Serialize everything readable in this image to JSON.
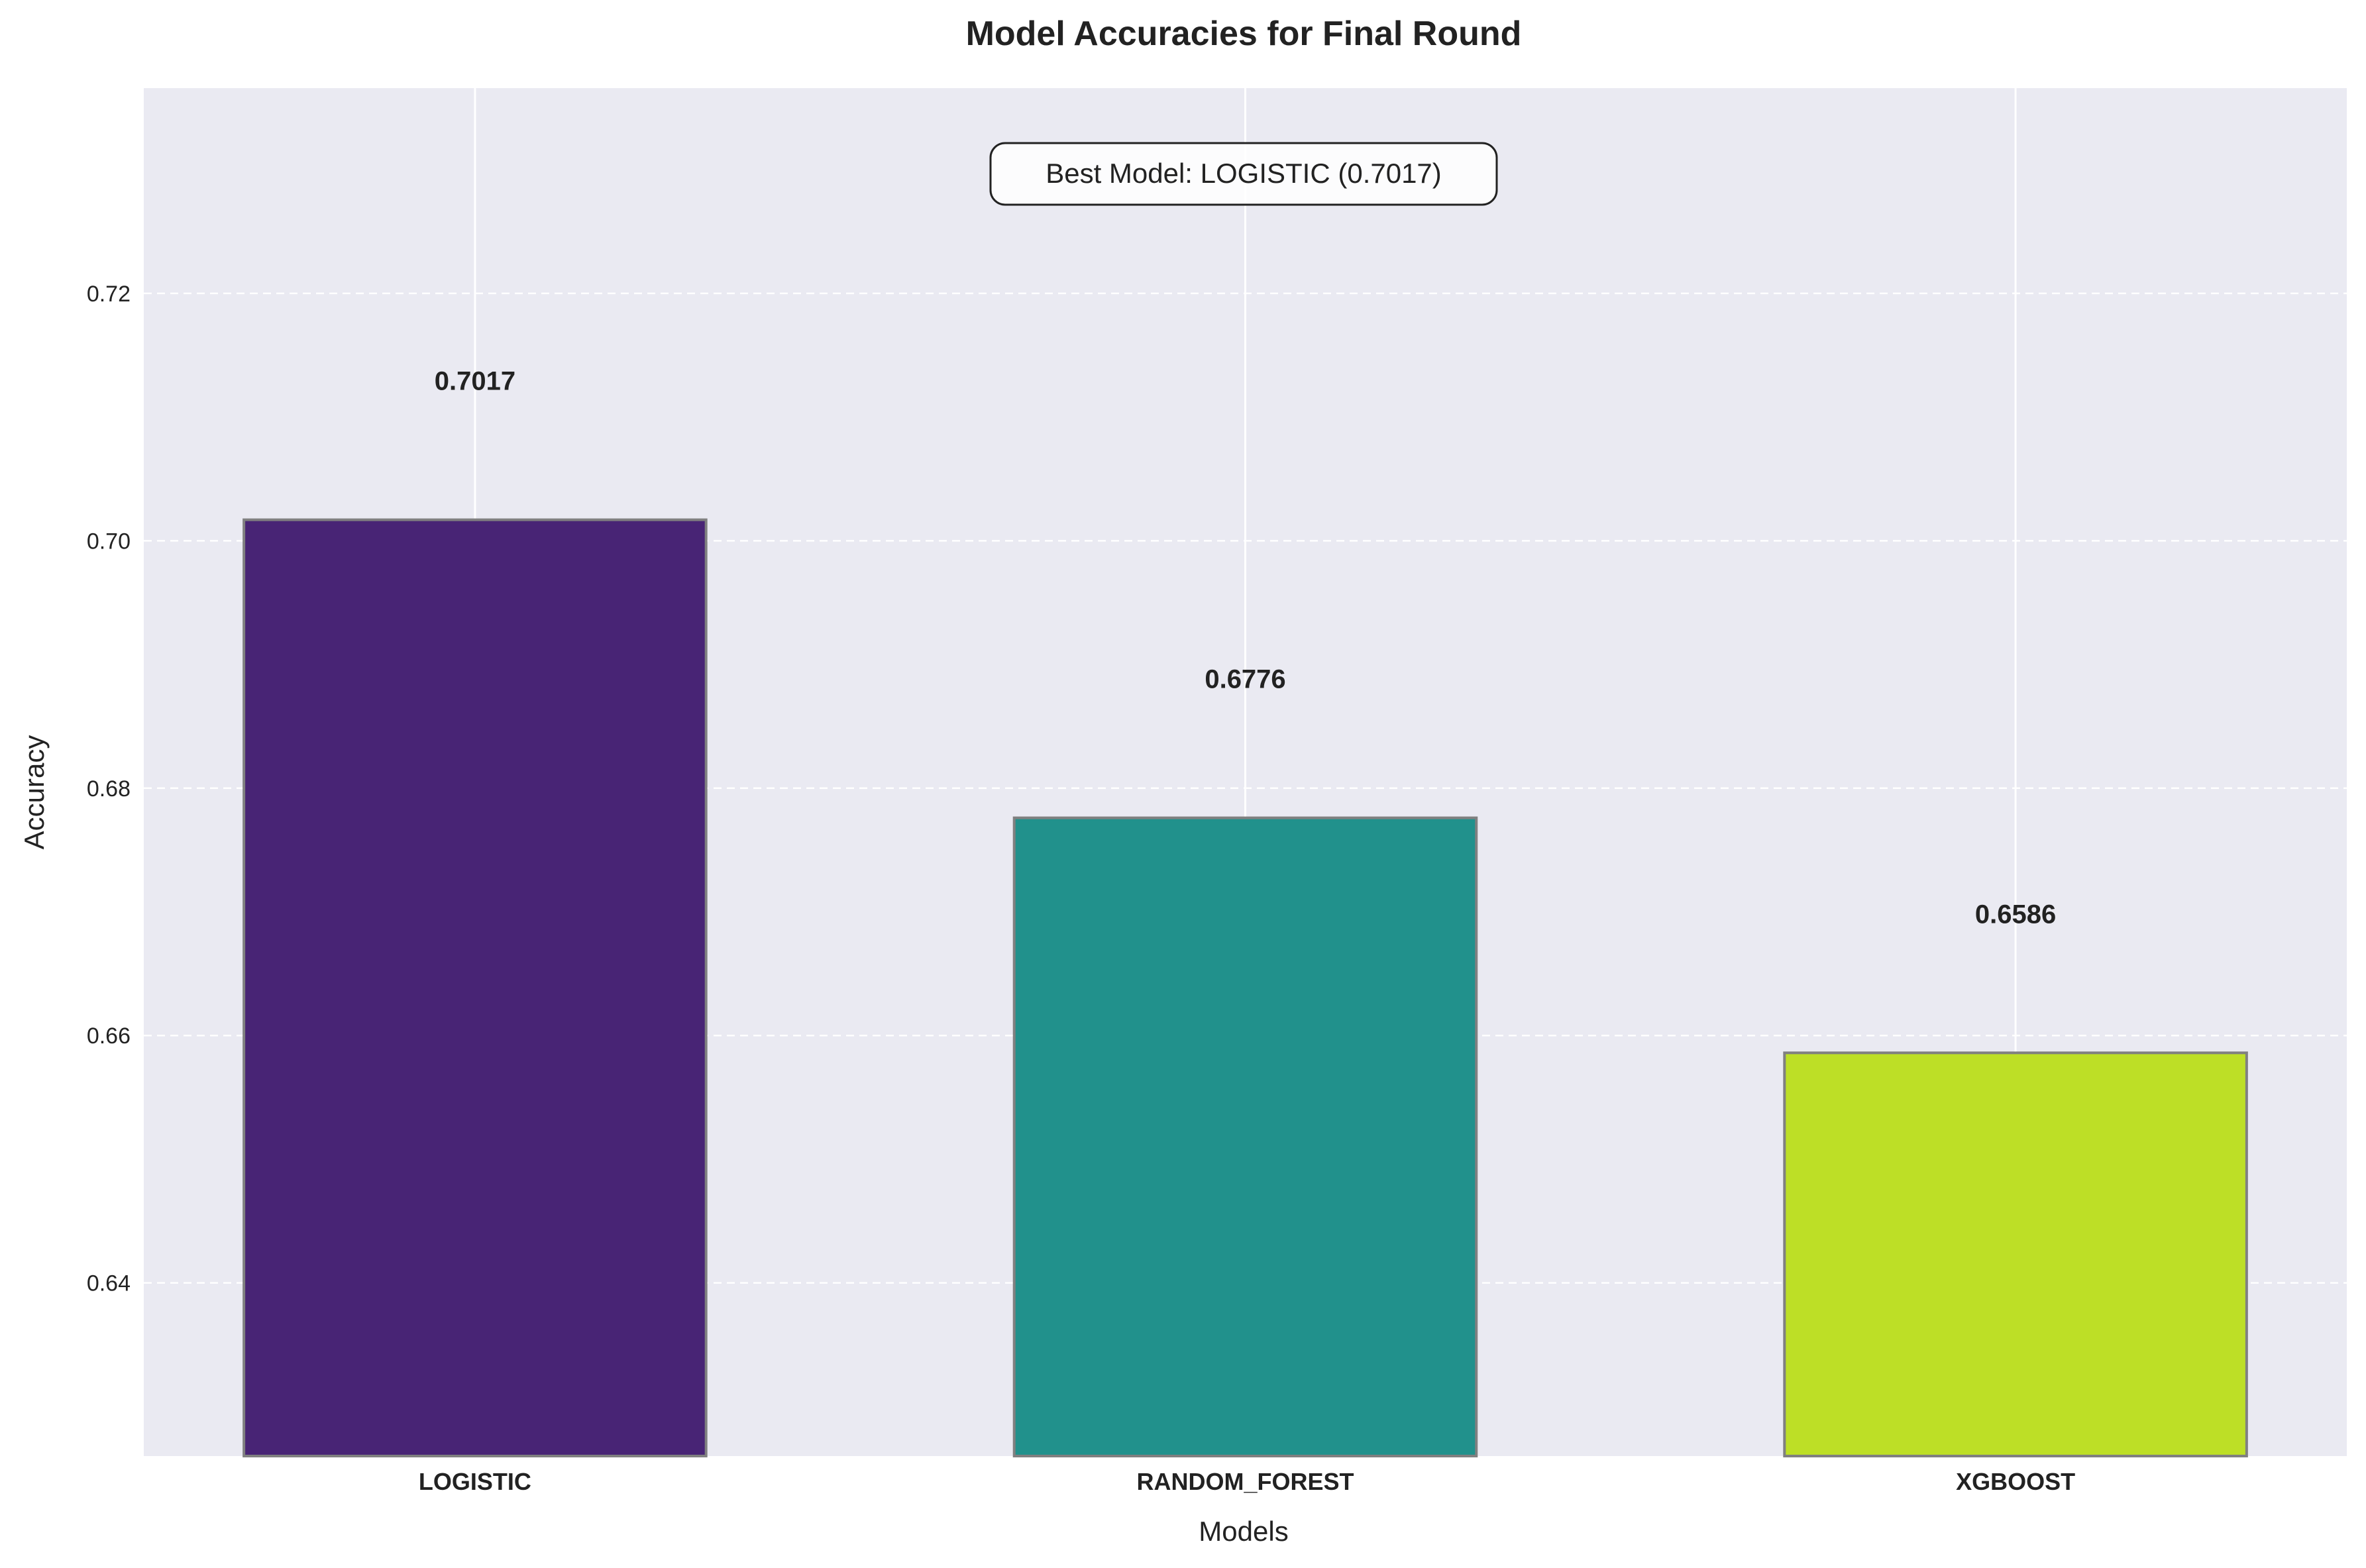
{
  "chart_data": {
    "type": "bar",
    "title": "Model Accuracies for Final Round",
    "xlabel": "Models",
    "ylabel": "Accuracy",
    "categories": [
      "LOGISTIC",
      "RANDOM_FOREST",
      "XGBOOST"
    ],
    "values": [
      0.7017,
      0.6776,
      0.6586
    ],
    "value_labels": [
      "0.7017",
      "0.6776",
      "0.6586"
    ],
    "bar_colors": [
      "#482475",
      "#21918c",
      "#bddf26"
    ],
    "bar_edge_color": "#808080",
    "ylim": [
      0.626,
      0.7366
    ],
    "yticks": [
      0.64,
      0.66,
      0.68,
      0.7,
      0.72
    ],
    "ytick_labels": [
      "0.64",
      "0.66",
      "0.68",
      "0.70",
      "0.72"
    ],
    "annotation": "Best Model: LOGISTIC (0.7017)",
    "background_color": "#eaeaf2",
    "grid": true,
    "y_grid_style": "dashed",
    "x_grid_style": "solid"
  }
}
